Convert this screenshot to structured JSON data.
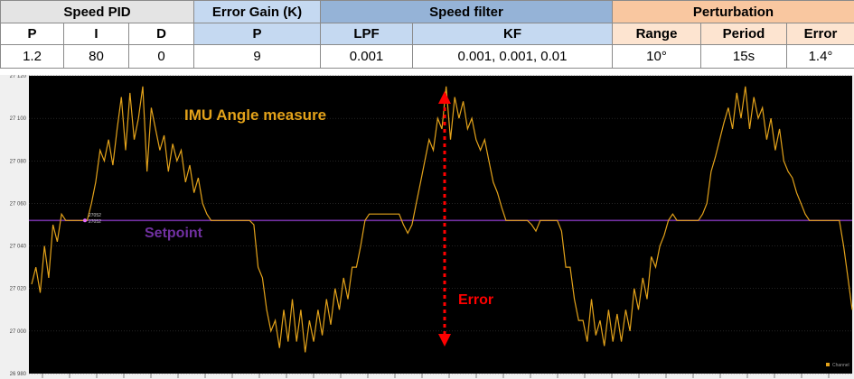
{
  "table": {
    "groups": [
      "Speed PID",
      "Error Gain (K)",
      "Speed filter",
      "Perturbation"
    ],
    "columns": [
      "P",
      "I",
      "D",
      "P",
      "LPF",
      "KF",
      "Range",
      "Period",
      "Error"
    ],
    "values": [
      "1.2",
      "80",
      "0",
      "9",
      "0.001",
      "0.001, 0.001, 0.01",
      "10°",
      "15s",
      "1.4°"
    ]
  },
  "colors": {
    "chart_bg": "#000000",
    "grid": "#3a3a3a",
    "angle_line": "#e3a21a",
    "setpoint_line": "#7030a0",
    "error_arrow": "#ff0000"
  },
  "chart_data": {
    "type": "line",
    "ylim": [
      26980,
      27120
    ],
    "yticks": [
      "26 980",
      "27 000",
      "27 020",
      "27 040",
      "27 060",
      "27 080",
      "27 100",
      "27 120"
    ],
    "legend": {
      "label": "Channel",
      "placement": "bottom-right"
    },
    "annotations": {
      "angle_label": "IMU Angle measure",
      "setpoint_label": "Setpoint",
      "error_label": "Error",
      "cursor_values": [
        "27052",
        "27052"
      ]
    },
    "series": [
      {
        "values": [
          27022,
          27030,
          27018,
          27040,
          27025,
          27050,
          27042,
          27055,
          27052,
          27052,
          27052,
          27052,
          27052,
          27052,
          27060,
          27070,
          27085,
          27080,
          27090,
          27078,
          27095,
          27110,
          27085,
          27112,
          27090,
          27100,
          27115,
          27075,
          27105,
          27095,
          27085,
          27092,
          27075,
          27088,
          27080,
          27085,
          27070,
          27078,
          27065,
          27072,
          27060,
          27055,
          27052,
          27052,
          27052,
          27052,
          27052,
          27052,
          27052,
          27052,
          27052,
          27052,
          27050,
          27030,
          27025,
          27010,
          27000,
          27005,
          26992,
          27010,
          26995,
          27015,
          26995,
          27010,
          26990,
          27005,
          26995,
          27010,
          26998,
          27015,
          27003,
          27020,
          27010,
          27025,
          27015,
          27030,
          27030,
          27040,
          27052,
          27055,
          27055,
          27055,
          27055,
          27055,
          27055,
          27055,
          27055,
          27050,
          27046,
          27050,
          27060,
          27070,
          27080,
          27090,
          27085,
          27100,
          27095,
          27115,
          27090,
          27110,
          27100,
          27108,
          27095,
          27100,
          27090,
          27085,
          27090,
          27080,
          27070,
          27065,
          27058,
          27052,
          27052,
          27052,
          27052,
          27052,
          27052,
          27050,
          27047,
          27052,
          27052,
          27052,
          27052,
          27052,
          27047,
          27030,
          27030,
          27015,
          27005,
          27005,
          26995,
          27015,
          26998,
          27005,
          26993,
          27010,
          26995,
          27008,
          26995,
          27010,
          27000,
          27020,
          27010,
          27025,
          27015,
          27035,
          27030,
          27040,
          27045,
          27052,
          27055,
          27052,
          27052,
          27052,
          27052,
          27052,
          27052,
          27055,
          27060,
          27075,
          27082,
          27090,
          27098,
          27105,
          27095,
          27112,
          27100,
          27115,
          27095,
          27110,
          27100,
          27105,
          27090,
          27100,
          27085,
          27095,
          27080,
          27075,
          27072,
          27065,
          27060,
          27055,
          27052,
          27052,
          27052,
          27052,
          27052,
          27052,
          27052,
          27052,
          27040,
          27025,
          27010
        ]
      },
      {
        "values": [
          27052,
          27052
        ]
      }
    ]
  }
}
